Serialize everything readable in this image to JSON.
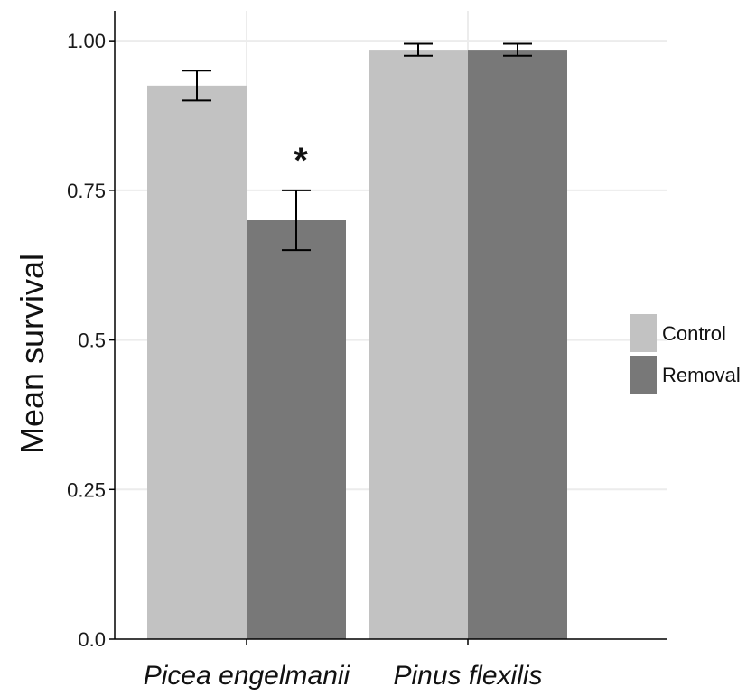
{
  "chart_data": {
    "type": "bar",
    "title": "",
    "xlabel": "",
    "ylabel": "Mean survival",
    "ylim": [
      0,
      1.05
    ],
    "yticks": [
      "0.0",
      "0.25",
      "0.5",
      "0.75",
      "1.00"
    ],
    "categories": [
      "Picea engelmanii",
      "Pinus flexilis"
    ],
    "series": [
      {
        "name": "Control",
        "color": "#c2c2c2",
        "values": [
          0.925,
          0.985
        ],
        "error_low": [
          0.9,
          0.975
        ],
        "error_high": [
          0.95,
          0.995
        ]
      },
      {
        "name": "Removal",
        "color": "#787878",
        "values": [
          0.7,
          0.985
        ],
        "error_low": [
          0.65,
          0.975
        ],
        "error_high": [
          0.75,
          0.995
        ]
      }
    ],
    "annotations": [
      {
        "text": "*",
        "category": "Picea engelmanii",
        "series": "Removal"
      }
    ],
    "grid": true,
    "legend": "right"
  }
}
